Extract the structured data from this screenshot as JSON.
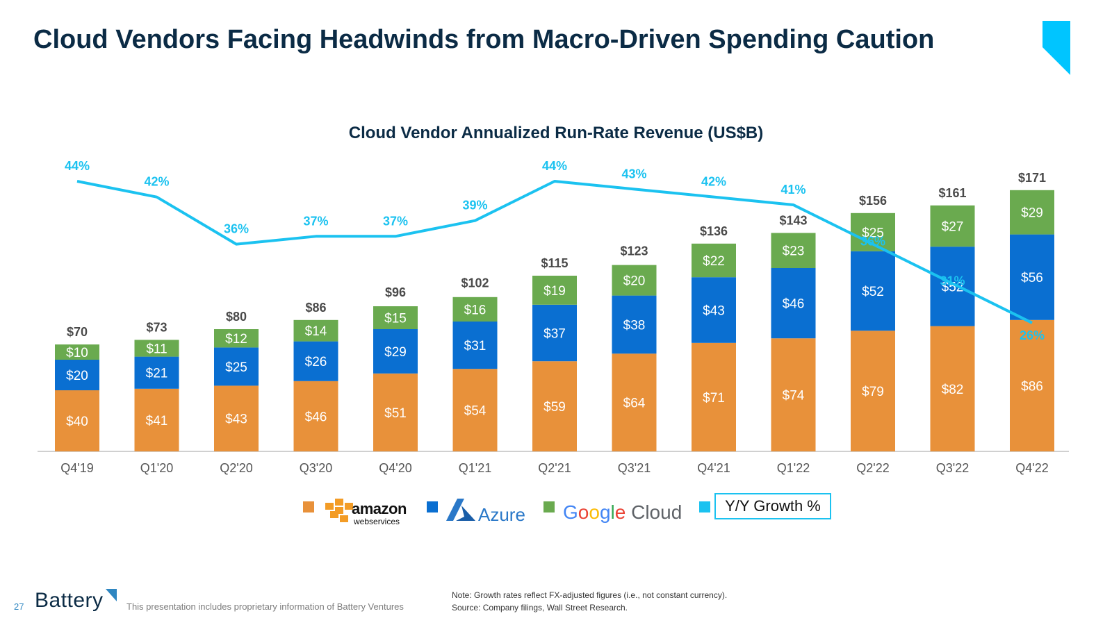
{
  "slide": {
    "title": "Cloud Vendors Facing Headwinds from Macro-Driven Spending Caution",
    "page_number": "27",
    "logo_text": "Battery",
    "disclaimer": "This presentation includes proprietary information of Battery Ventures",
    "note_line1": "Note: Growth rates reflect FX-adjusted figures (i.e., not constant currency).",
    "note_line2": "Source: Company filings, Wall Street Research.",
    "accent_color": "#00c5ff"
  },
  "legend": {
    "aws_word": "amazon",
    "aws_sub": "webservices",
    "azure_word": "Azure",
    "google_cloud_word": "Cloud",
    "growth_label": "Y/Y Growth %"
  },
  "chart_data": {
    "type": "bar",
    "stacked": true,
    "title": "Cloud Vendor Annualized Run-Rate Revenue (US$B)",
    "categories": [
      "Q4'19",
      "Q1'20",
      "Q2'20",
      "Q3'20",
      "Q4'20",
      "Q1'21",
      "Q2'21",
      "Q3'21",
      "Q4'21",
      "Q1'22",
      "Q2'22",
      "Q3'22",
      "Q4'22"
    ],
    "series": [
      {
        "name": "amazon webservices",
        "color": "#e8913a",
        "values": [
          40,
          41,
          43,
          46,
          51,
          54,
          59,
          64,
          71,
          74,
          79,
          82,
          86
        ],
        "labels": [
          "$40",
          "$41",
          "$43",
          "$46",
          "$51",
          "$54",
          "$59",
          "$64",
          "$71",
          "$74",
          "$79",
          "$82",
          "$86"
        ]
      },
      {
        "name": "Azure",
        "color": "#0a6fd1",
        "values": [
          20,
          21,
          25,
          26,
          29,
          31,
          37,
          38,
          43,
          46,
          52,
          52,
          56
        ],
        "labels": [
          "$20",
          "$21",
          "$25",
          "$26",
          "$29",
          "$31",
          "$37",
          "$38",
          "$43",
          "$46",
          "$52",
          "$52",
          "$56"
        ]
      },
      {
        "name": "Google Cloud",
        "color": "#6aaa4f",
        "values": [
          10,
          11,
          12,
          14,
          15,
          16,
          19,
          20,
          22,
          23,
          25,
          27,
          29
        ],
        "labels": [
          "$10",
          "$11",
          "$12",
          "$14",
          "$15",
          "$16",
          "$19",
          "$20",
          "$22",
          "$23",
          "$25",
          "$27",
          "$29"
        ]
      }
    ],
    "totals": [
      70,
      73,
      80,
      86,
      96,
      102,
      115,
      123,
      136,
      143,
      156,
      161,
      171
    ],
    "total_labels": [
      "$70",
      "$73",
      "$80",
      "$86",
      "$96",
      "$102",
      "$115",
      "$123",
      "$136",
      "$143",
      "$156",
      "$161",
      "$171"
    ],
    "line_series": {
      "name": "Y/Y Growth %",
      "color": "#1bc2f0",
      "values": [
        44,
        42,
        36,
        37,
        37,
        39,
        44,
        43,
        42,
        41,
        36,
        31,
        26
      ],
      "labels": [
        "44%",
        "42%",
        "36%",
        "37%",
        "37%",
        "39%",
        "44%",
        "43%",
        "42%",
        "41%",
        "36%",
        "31%",
        "26%"
      ]
    },
    "legend_position": "bottom",
    "grid": false
  }
}
